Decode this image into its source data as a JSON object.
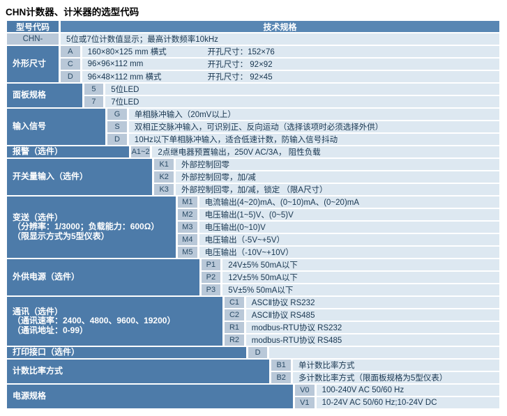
{
  "page_title": "CHN计数器、计米器的选型代码",
  "colors": {
    "label_bg": "#4d7ba9",
    "header_bg": "#5886b3",
    "code_bg": "#b9c8d8",
    "desc_bg": "#dde8f1",
    "label_text": "#ffffff",
    "code_text": "#2a4b66",
    "desc_text": "#183650"
  },
  "table": {
    "header": {
      "col1": "型号代码",
      "col2": "技术规格"
    },
    "model_row": {
      "code": "CHN-",
      "desc": "5位或7位计数值显示；最高计数频率10kHz"
    },
    "sections": [
      {
        "label": [
          "外形尺寸"
        ],
        "rows": [
          {
            "code": "A",
            "desc": "160×80×125 mm 横式",
            "desc2": "开孔尺寸：152×76"
          },
          {
            "code": "C",
            "desc": "96×96×112 mm",
            "desc2": "开孔尺寸： 92×92"
          },
          {
            "code": "D",
            "desc": "96×48×112 mm 横式",
            "desc2": "开孔尺寸： 92×45"
          }
        ]
      },
      {
        "label": [
          "面板规格"
        ],
        "rows": [
          {
            "code": "5",
            "desc": "5位LED"
          },
          {
            "code": "7",
            "desc": "7位LED"
          }
        ]
      },
      {
        "label": [
          "输入信号"
        ],
        "rows": [
          {
            "code": "G",
            "desc": "单相脉冲输入（20mV以上）"
          },
          {
            "code": "S",
            "desc": "双相正交脉冲输入，可识别正、反向运动（选择该项时必须选择外供）"
          },
          {
            "code": "D",
            "desc": "10Hz以下单相脉冲输入，适合低速计数，防输入信号抖动"
          }
        ]
      },
      {
        "label": [
          "报警（选件）"
        ],
        "rows": [
          {
            "code": "A1~2",
            "desc": "2点继电器预置输出，250V AC/3A， 阻性负载"
          }
        ]
      },
      {
        "label": [
          "开关量输入（选件）"
        ],
        "rows": [
          {
            "code": "K1",
            "desc": "外部控制回零"
          },
          {
            "code": "K2",
            "desc": "外部控制回零，加/减"
          },
          {
            "code": "K3",
            "desc": "外部控制回零，加/减，锁定 （限A尺寸）"
          }
        ]
      },
      {
        "label": [
          "变送（选件）",
          "（分辨率：1/3000；负载能力：600Ω）",
          "（限显示方式为5型仪表）"
        ],
        "rows": [
          {
            "code": "M1",
            "desc": "电流输出(4~20)mA、(0~10)mA、(0~20)mA"
          },
          {
            "code": "M2",
            "desc": "电压输出(1~5)V、(0~5)V"
          },
          {
            "code": "M3",
            "desc": "电压输出(0~10)V"
          },
          {
            "code": "M4",
            "desc": "电压输出（-5V~+5V）"
          },
          {
            "code": "M5",
            "desc": "电压输出（-10V~+10V）"
          }
        ]
      },
      {
        "label": [
          "外供电源（选件）"
        ],
        "rows": [
          {
            "code": "P1",
            "desc": "24V±5% 50mA以下"
          },
          {
            "code": "P2",
            "desc": "12V±5% 50mA以下"
          },
          {
            "code": "P3",
            "desc": "5V±5% 50mA以下"
          }
        ]
      },
      {
        "label": [
          "通讯（选件）",
          "（通讯速率：2400、4800、9600、19200）",
          "（通讯地址：0-99）"
        ],
        "rows": [
          {
            "code": "C1",
            "desc": "ASCⅡ协议 RS232"
          },
          {
            "code": "C2",
            "desc": "ASCⅡ协议 RS485"
          },
          {
            "code": "R1",
            "desc": "modbus-RTU协议 RS232"
          },
          {
            "code": "R2",
            "desc": "modbus-RTU协议 RS485"
          }
        ]
      },
      {
        "label": [
          "打印接口（选件）"
        ],
        "rows": [
          {
            "code": "D",
            "desc": ""
          }
        ]
      },
      {
        "label": [
          "计数比率方式"
        ],
        "rows": [
          {
            "code": "B1",
            "desc": "单计数比率方式"
          },
          {
            "code": "B2",
            "desc": "多计数比率方式（限面板规格为5型仪表）"
          }
        ]
      },
      {
        "label": [
          "电源规格"
        ],
        "rows": [
          {
            "code": "V0",
            "desc": "100-240V AC 50/60 Hz"
          },
          {
            "code": "V1",
            "desc": "10-24V AC 50/60 Hz;10-24V DC"
          }
        ]
      }
    ]
  }
}
